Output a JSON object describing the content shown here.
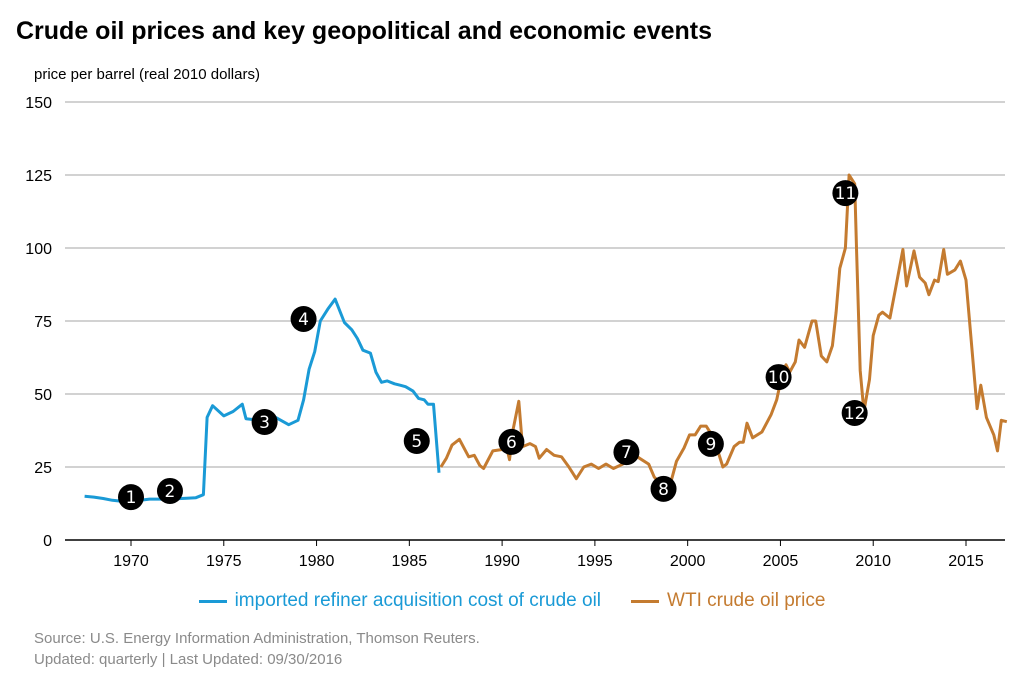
{
  "chart_data": {
    "type": "line",
    "title": "Crude oil prices and key geopolitical and economic events",
    "ylabel": "price per barrel (real 2010 dollars)",
    "xlabel": "",
    "xlim": [
      1966.4,
      2017.2
    ],
    "ylim": [
      0,
      150
    ],
    "yticks": [
      0,
      25,
      50,
      75,
      100,
      125,
      150
    ],
    "xticks": [
      1970,
      1975,
      1980,
      1985,
      1990,
      1995,
      2000,
      2005,
      2010,
      2015
    ],
    "grid": "horizontal",
    "legend_position": "bottom",
    "series": [
      {
        "name": "imported refiner acquisition cost of crude oil",
        "color": "#1a9ad6",
        "points": [
          [
            1967.5,
            15
          ],
          [
            1968,
            14.7
          ],
          [
            1968.5,
            14.2
          ],
          [
            1969,
            13.6
          ],
          [
            1969.5,
            13.3
          ],
          [
            1970,
            13.2
          ],
          [
            1970.5,
            13.6
          ],
          [
            1971,
            14
          ],
          [
            1972,
            14
          ],
          [
            1973,
            14.3
          ],
          [
            1973.5,
            14.5
          ],
          [
            1973.9,
            15.5
          ],
          [
            1974.1,
            42
          ],
          [
            1974.4,
            46
          ],
          [
            1975,
            42.5
          ],
          [
            1975.5,
            44
          ],
          [
            1976,
            46.5
          ],
          [
            1976.2,
            41.5
          ],
          [
            1977,
            41
          ],
          [
            1977.3,
            42.5
          ],
          [
            1977.8,
            42
          ],
          [
            1978.5,
            39.5
          ],
          [
            1979,
            41
          ],
          [
            1979.3,
            48
          ],
          [
            1979.6,
            58.5
          ],
          [
            1979.9,
            64.5
          ],
          [
            1980.2,
            75
          ],
          [
            1980.6,
            79
          ],
          [
            1981,
            82.5
          ],
          [
            1981.5,
            74.5
          ],
          [
            1981.9,
            72
          ],
          [
            1982.2,
            69
          ],
          [
            1982.5,
            65
          ],
          [
            1982.9,
            64
          ],
          [
            1983.2,
            57.5
          ],
          [
            1983.5,
            54
          ],
          [
            1983.8,
            54.5
          ],
          [
            1984.2,
            53.5
          ],
          [
            1984.5,
            53
          ],
          [
            1984.8,
            52.5
          ],
          [
            1985.2,
            51
          ],
          [
            1985.5,
            48.5
          ],
          [
            1985.8,
            48
          ],
          [
            1986,
            46.5
          ],
          [
            1986.3,
            46.5
          ],
          [
            1986.6,
            23
          ]
        ]
      },
      {
        "name": "WTI crude oil price",
        "color": "#c47b30",
        "points": [
          [
            1986.7,
            25
          ],
          [
            1987,
            28
          ],
          [
            1987.3,
            32.5
          ],
          [
            1987.7,
            34.5
          ],
          [
            1988.2,
            28.5
          ],
          [
            1988.5,
            29
          ],
          [
            1988.8,
            25.5
          ],
          [
            1989,
            24.5
          ],
          [
            1989.5,
            30.5
          ],
          [
            1990,
            31
          ],
          [
            1990.2,
            33
          ],
          [
            1990.4,
            27.5
          ],
          [
            1990.6,
            38
          ],
          [
            1990.9,
            47.5
          ],
          [
            1991.1,
            32
          ],
          [
            1991.5,
            33
          ],
          [
            1991.8,
            32
          ],
          [
            1992,
            28
          ],
          [
            1992.4,
            31
          ],
          [
            1992.8,
            29
          ],
          [
            1993.2,
            28.5
          ],
          [
            1993.6,
            25
          ],
          [
            1994,
            21
          ],
          [
            1994.4,
            25
          ],
          [
            1994.8,
            26
          ],
          [
            1995.2,
            24.5
          ],
          [
            1995.6,
            26
          ],
          [
            1996,
            24.5
          ],
          [
            1996.5,
            26
          ],
          [
            1997,
            30
          ],
          [
            1997.4,
            28
          ],
          [
            1997.9,
            26
          ],
          [
            1998.2,
            21.5
          ],
          [
            1998.7,
            18.5
          ],
          [
            1999.1,
            20
          ],
          [
            1999.4,
            27
          ],
          [
            1999.8,
            31.5
          ],
          [
            2000.1,
            36
          ],
          [
            2000.4,
            36
          ],
          [
            2000.7,
            39
          ],
          [
            2001,
            39
          ],
          [
            2001.3,
            36
          ],
          [
            2001.6,
            31
          ],
          [
            2001.9,
            25
          ],
          [
            2002.1,
            26
          ],
          [
            2002.5,
            32
          ],
          [
            2002.8,
            33.5
          ],
          [
            2003,
            33.5
          ],
          [
            2003.2,
            40
          ],
          [
            2003.5,
            35
          ],
          [
            2004,
            37
          ],
          [
            2004.5,
            43
          ],
          [
            2004.8,
            48
          ],
          [
            2005.1,
            57
          ],
          [
            2005.3,
            60
          ],
          [
            2005.5,
            57.5
          ],
          [
            2005.8,
            61
          ],
          [
            2006,
            68.5
          ],
          [
            2006.3,
            66
          ],
          [
            2006.7,
            75
          ],
          [
            2006.9,
            75
          ],
          [
            2007.2,
            63
          ],
          [
            2007.5,
            61
          ],
          [
            2007.8,
            66.5
          ],
          [
            2008,
            78
          ],
          [
            2008.2,
            93
          ],
          [
            2008.5,
            100
          ],
          [
            2008.7,
            125
          ],
          [
            2009,
            122
          ],
          [
            2009.1,
            100
          ],
          [
            2009.3,
            58
          ],
          [
            2009.5,
            44
          ],
          [
            2009.8,
            55
          ],
          [
            2010,
            70
          ],
          [
            2010.3,
            77
          ],
          [
            2010.5,
            78
          ],
          [
            2010.9,
            76
          ],
          [
            2011.2,
            86
          ],
          [
            2011.6,
            99.5
          ],
          [
            2011.8,
            87
          ],
          [
            2012.2,
            99
          ],
          [
            2012.5,
            90
          ],
          [
            2012.8,
            88
          ],
          [
            2013,
            84
          ],
          [
            2013.3,
            89
          ],
          [
            2013.5,
            88.5
          ],
          [
            2013.8,
            99.5
          ],
          [
            2014,
            91
          ],
          [
            2014.4,
            92.5
          ],
          [
            2014.7,
            95.5
          ],
          [
            2015,
            89
          ],
          [
            2015.6,
            45
          ],
          [
            2015.8,
            53
          ],
          [
            2016.1,
            42
          ],
          [
            2016.5,
            36
          ],
          [
            2016.7,
            30.5
          ],
          [
            2016.9,
            41
          ],
          [
            2017.2,
            40.5
          ]
        ]
      }
    ],
    "annotations": [
      {
        "label": "1",
        "x": 1970,
        "y": 14.7
      },
      {
        "label": "2",
        "x": 1972.1,
        "y": 16.8
      },
      {
        "label": "3",
        "x": 1977.2,
        "y": 40.4
      },
      {
        "label": "4",
        "x": 1979.3,
        "y": 75.7
      },
      {
        "label": "5",
        "x": 1985.4,
        "y": 33.9
      },
      {
        "label": "6",
        "x": 1990.5,
        "y": 33.6
      },
      {
        "label": "7",
        "x": 1996.7,
        "y": 30.1
      },
      {
        "label": "8",
        "x": 1998.7,
        "y": 17.5
      },
      {
        "label": "9",
        "x": 2001.25,
        "y": 32.9
      },
      {
        "label": "10",
        "x": 2004.9,
        "y": 55.8
      },
      {
        "label": "11",
        "x": 2008.5,
        "y": 118.8
      },
      {
        "label": "12",
        "x": 2009,
        "y": 43.5
      }
    ]
  },
  "source": "Source: U.S. Energy Information Administration, Thomson Reuters.",
  "updated": "Updated: quarterly | Last Updated: 09/30/2016"
}
